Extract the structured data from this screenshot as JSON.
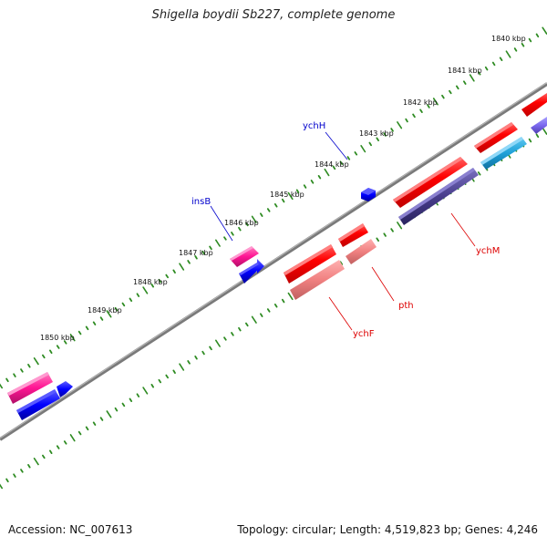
{
  "title": "Shigella boydii Sb227, complete genome",
  "footer": {
    "accession": "Accession: NC_007613",
    "summary": "Topology: circular; Length: 4,519,823 bp; Genes: 4,246"
  },
  "ticks": [
    {
      "label": "1840 kbp"
    },
    {
      "label": "1841 kbp"
    },
    {
      "label": "1842 kbp"
    },
    {
      "label": "1843 kbp"
    },
    {
      "label": "1844 kbp"
    },
    {
      "label": "1845 kbp"
    },
    {
      "label": "1846 kbp"
    },
    {
      "label": "1847 kbp"
    },
    {
      "label": "1848 kbp"
    },
    {
      "label": "1849 kbp"
    },
    {
      "label": "1850 kbp"
    }
  ],
  "gene_labels": [
    {
      "text": "ychH",
      "color": "#0000cc"
    },
    {
      "text": "insB",
      "color": "#0000cc"
    },
    {
      "text": "ychM",
      "color": "#dd0000"
    },
    {
      "text": "pth",
      "color": "#dd0000"
    },
    {
      "text": "ychF",
      "color": "#dd0000"
    }
  ],
  "colors": {
    "backbone": "#888888",
    "tick": "#2e8b22",
    "cds_forward": "#ff0000",
    "cds_light": "#f08080",
    "mobile_element": "#ff1493",
    "blue_feature": "#0000ff",
    "dark_feature": "#483d8b",
    "cyan_feature": "#1ea0d8",
    "violet_feature": "#7b68ee"
  }
}
